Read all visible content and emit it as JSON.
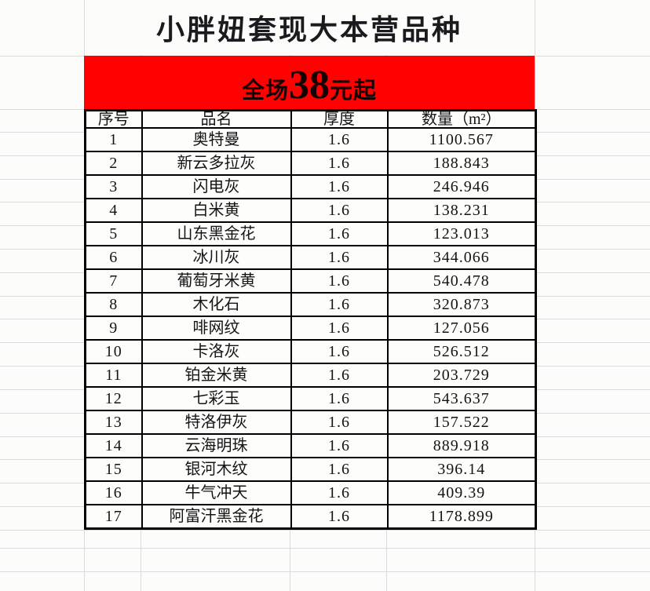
{
  "page": {
    "background": "#fcfcfb",
    "gridline_color": "#d8dadd"
  },
  "title": {
    "text": "小胖妞套现大本营品种"
  },
  "banner": {
    "prefix": "全场",
    "price": "38",
    "suffix": "元起",
    "background": "#fe0100",
    "text_color": "#160202"
  },
  "table": {
    "headers": [
      "序号",
      "品名",
      "厚度",
      "数量（m²）"
    ],
    "rows": [
      [
        "1",
        "奥特曼",
        "1.6",
        "1100.567"
      ],
      [
        "2",
        "新云多拉灰",
        "1.6",
        "188.843"
      ],
      [
        "3",
        "闪电灰",
        "1.6",
        "246.946"
      ],
      [
        "4",
        "白米黄",
        "1.6",
        "138.231"
      ],
      [
        "5",
        "山东黑金花",
        "1.6",
        "123.013"
      ],
      [
        "6",
        "冰川灰",
        "1.6",
        "344.066"
      ],
      [
        "7",
        "葡萄牙米黄",
        "1.6",
        "540.478"
      ],
      [
        "8",
        "木化石",
        "1.6",
        "320.873"
      ],
      [
        "9",
        "啡网纹",
        "1.6",
        "127.056"
      ],
      [
        "10",
        "卡洛灰",
        "1.6",
        "526.512"
      ],
      [
        "11",
        "铂金米黄",
        "1.6",
        "203.729"
      ],
      [
        "12",
        "七彩玉",
        "1.6",
        "543.637"
      ],
      [
        "13",
        "特洛伊灰",
        "1.6",
        "157.522"
      ],
      [
        "14",
        "云海明珠",
        "1.6",
        "889.918"
      ],
      [
        "15",
        "银河木纹",
        "1.6",
        "396.14"
      ],
      [
        "16",
        "牛气冲天",
        "1.6",
        "409.39"
      ],
      [
        "17",
        "阿富汗黑金花",
        "1.6",
        "1178.899"
      ]
    ]
  }
}
